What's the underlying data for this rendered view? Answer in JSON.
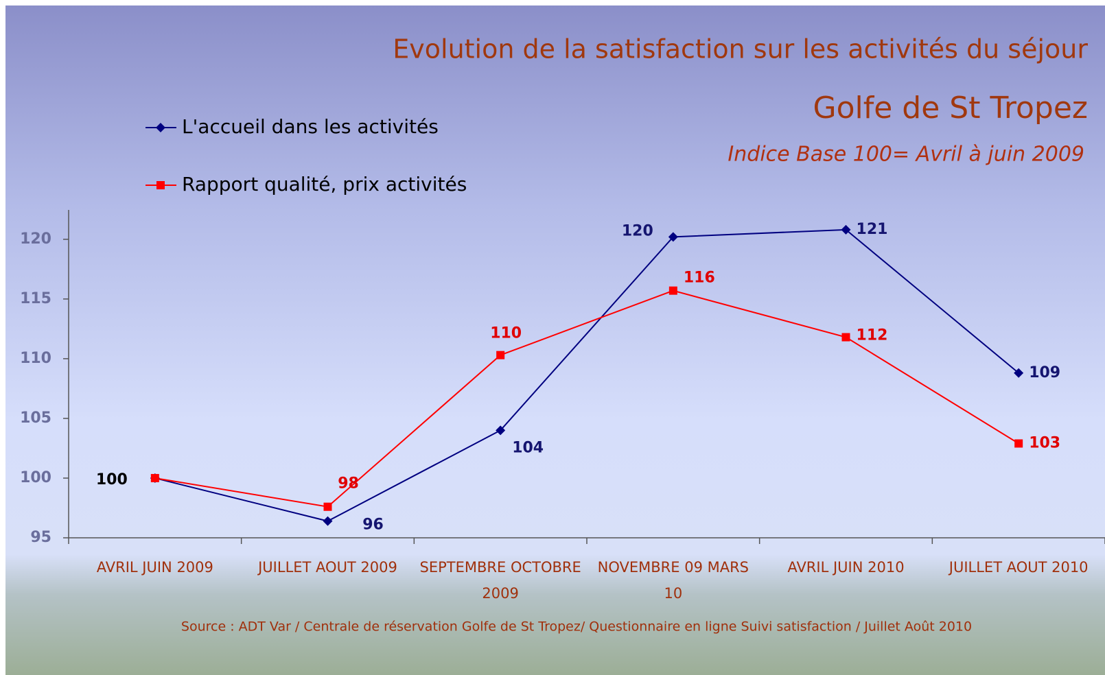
{
  "chart_data": {
    "type": "line",
    "title": "Evolution de la satisfaction sur les activités du séjour",
    "subtitle": "Golfe de St Tropez",
    "note": "Indice Base 100= Avril à juin 2009",
    "source": "Source : ADT Var / Centrale de réservation Golfe de St Tropez/ Questionnaire en ligne Suivi satisfaction / Juillet Août 2010",
    "categories": [
      "AVRIL JUIN 2009",
      "JUILLET AOUT 2009",
      "SEPTEMBRE OCTOBRE 2009",
      "NOVEMBRE 09 MARS 10",
      "AVRIL JUIN 2010",
      "JUILLET AOUT 2010"
    ],
    "series": [
      {
        "name": "L'accueil dans les activités",
        "color": "#000080",
        "marker": "diamond",
        "values": [
          100,
          96.4,
          104,
          120.2,
          120.8,
          108.8
        ],
        "value_labels": [
          "100",
          "96",
          "104",
          "120",
          "121",
          "109"
        ]
      },
      {
        "name": "Rapport qualité, prix activités",
        "color": "#ff0000",
        "marker": "square",
        "values": [
          100,
          97.6,
          110.3,
          115.7,
          111.8,
          102.9
        ],
        "value_labels": [
          null,
          "98",
          "110",
          "116",
          "112",
          "103"
        ]
      }
    ],
    "ylim": [
      95,
      122
    ],
    "yticks": [
      95,
      100,
      105,
      110,
      115,
      120
    ],
    "grid": false,
    "legend": "top-left"
  }
}
